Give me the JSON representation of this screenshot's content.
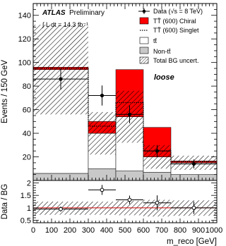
{
  "chart_data": [
    {
      "type": "bar",
      "panel": "main",
      "x_edges": [
        0,
        300,
        450,
        600,
        750,
        1000
      ],
      "xlim": [
        0,
        1000
      ],
      "ylim": [
        0,
        150
      ],
      "yticks": [
        20,
        40,
        60,
        80,
        100,
        120,
        140
      ],
      "ylabel": "Events / 150 GeV",
      "label_atlas": "ATLAS",
      "label_status": "Preliminary",
      "lumi_text": "∫ L dt = 14.3 fb⁻¹",
      "region_label": "loose",
      "legend_position": "top-right",
      "legend": {
        "data": "Data (√s = 8 TeV)",
        "chiral": "TT̄ (600) Chiral",
        "singlet": "TT̄ (600) Singlet",
        "ttbar": "tt̄",
        "nonttbar": "Non-tt̄",
        "uncert": "Total BG uncert."
      },
      "series": [
        {
          "name": "Non-tt̄",
          "values": [
            6,
            10,
            8,
            7,
            5
          ]
        },
        {
          "name": "tt̄",
          "values": [
            88,
            30,
            46,
            13,
            10
          ]
        },
        {
          "name": "TT̄ (600) Chiral",
          "values": [
            2,
            10,
            40,
            25,
            1.5
          ]
        },
        {
          "name": "TT̄ (600) Singlet",
          "values": [
            1,
            6,
            12,
            5,
            1
          ]
        },
        {
          "name": "Total BG uncert.",
          "values": [
            38,
            18,
            22,
            10,
            6
          ]
        },
        {
          "name": "Data (√s = 8 TeV)",
          "x": [
            150,
            375,
            525,
            675,
            875
          ],
          "values": [
            86,
            72,
            56,
            25,
            14
          ],
          "errors": [
            9,
            8.5,
            7.5,
            5,
            3.8
          ]
        }
      ],
      "colors": {
        "chiral": "#ff0000",
        "nonttbar": "#c8c8c8",
        "ttbar": "#ffffff",
        "data": "#000000"
      }
    },
    {
      "type": "scatter",
      "panel": "ratio",
      "xlim": [
        0,
        1000
      ],
      "ylim": [
        0.4,
        2.1
      ],
      "yticks": [
        0.5,
        1,
        1.5,
        2
      ],
      "xticks": [
        0,
        100,
        200,
        300,
        400,
        500,
        600,
        700,
        800,
        900,
        1000
      ],
      "ylabel": "Data / BG",
      "xlabel": "m_reco [GeV]",
      "reference_line": 1,
      "uncert_band": [
        [
          0.72,
          1.25
        ],
        [
          0.72,
          1.25
        ],
        [
          0.7,
          1.28
        ],
        [
          0.65,
          1.32
        ],
        [
          0.68,
          1.3
        ]
      ],
      "x": [
        150,
        375,
        525,
        675,
        875
      ],
      "values": [
        0.95,
        1.72,
        1.32,
        1.2,
        1.0
      ],
      "errors": [
        0.1,
        0.2,
        0.17,
        0.3,
        0.25
      ],
      "xerr": [
        150,
        75,
        75,
        75,
        125
      ]
    }
  ]
}
